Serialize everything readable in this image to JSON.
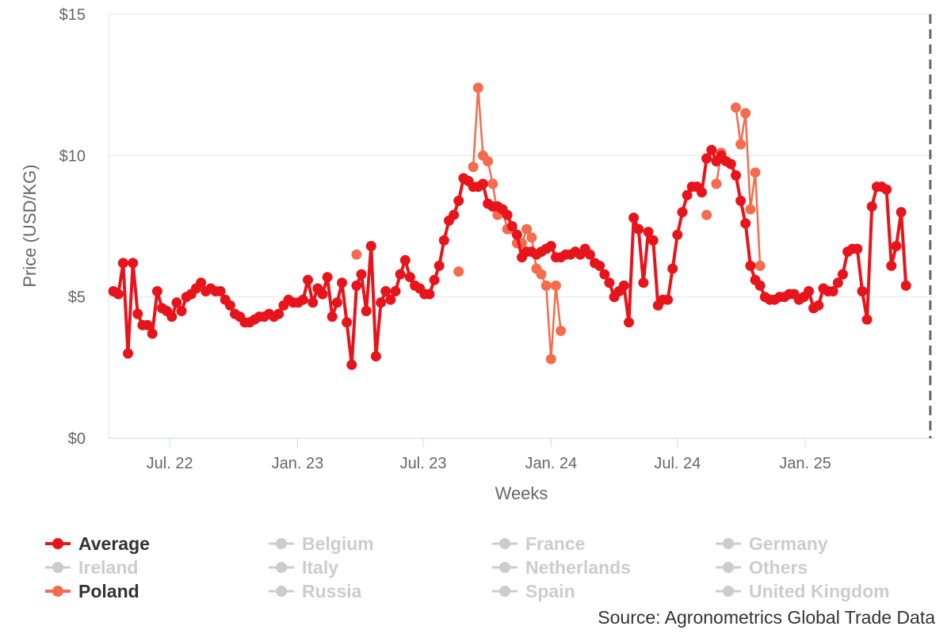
{
  "chart_data": {
    "type": "line",
    "xlabel": "Weeks",
    "ylabel": "Price (USD/KG)",
    "y_ticks": [
      "$0",
      "$5",
      "$10",
      "$15"
    ],
    "x_ticks": [
      "Jul. 22",
      "Jan. 23",
      "Jul. 23",
      "Jan. 24",
      "Jul. 24",
      "Jan. 25"
    ],
    "ylim": [
      0,
      15
    ],
    "xlim": [
      "2022-04-04",
      "2025-07-07"
    ],
    "grid": "horizontal",
    "legend_position": "bottom",
    "current_week_marker": "2025-06-30",
    "series": [
      {
        "name": "Average",
        "color": "#e8141b",
        "points": [
          [
            "2022-04-11",
            5.2
          ],
          [
            "2022-04-18",
            5.1
          ],
          [
            "2022-04-25",
            6.2
          ],
          [
            "2022-05-02",
            3.0
          ],
          [
            "2022-05-09",
            6.2
          ],
          [
            "2022-05-16",
            4.4
          ],
          [
            "2022-05-23",
            4.0
          ],
          [
            "2022-05-30",
            4.0
          ],
          [
            "2022-06-06",
            3.7
          ],
          [
            "2022-06-13",
            5.2
          ],
          [
            "2022-06-20",
            4.6
          ],
          [
            "2022-06-27",
            4.5
          ],
          [
            "2022-07-04",
            4.3
          ],
          [
            "2022-07-11",
            4.8
          ],
          [
            "2022-07-18",
            4.5
          ],
          [
            "2022-07-25",
            5.0
          ],
          [
            "2022-08-01",
            5.1
          ],
          [
            "2022-08-08",
            5.3
          ],
          [
            "2022-08-15",
            5.5
          ],
          [
            "2022-08-22",
            5.2
          ],
          [
            "2022-08-29",
            5.3
          ],
          [
            "2022-09-05",
            5.2
          ],
          [
            "2022-09-12",
            5.2
          ],
          [
            "2022-09-19",
            4.9
          ],
          [
            "2022-09-26",
            4.7
          ],
          [
            "2022-10-03",
            4.4
          ],
          [
            "2022-10-10",
            4.3
          ],
          [
            "2022-10-17",
            4.1
          ],
          [
            "2022-10-24",
            4.1
          ],
          [
            "2022-10-31",
            4.2
          ],
          [
            "2022-11-07",
            4.3
          ],
          [
            "2022-11-14",
            4.3
          ],
          [
            "2022-11-21",
            4.4
          ],
          [
            "2022-11-28",
            4.3
          ],
          [
            "2022-12-05",
            4.4
          ],
          [
            "2022-12-12",
            4.7
          ],
          [
            "2022-12-19",
            4.9
          ],
          [
            "2022-12-26",
            4.8
          ],
          [
            "2023-01-02",
            4.8
          ],
          [
            "2023-01-09",
            4.9
          ],
          [
            "2023-01-16",
            5.6
          ],
          [
            "2023-01-23",
            4.8
          ],
          [
            "2023-01-30",
            5.3
          ],
          [
            "2023-02-06",
            5.1
          ],
          [
            "2023-02-13",
            5.7
          ],
          [
            "2023-02-20",
            4.3
          ],
          [
            "2023-02-27",
            4.8
          ],
          [
            "2023-03-06",
            5.5
          ],
          [
            "2023-03-13",
            4.1
          ],
          [
            "2023-03-20",
            2.6
          ],
          [
            "2023-03-27",
            5.4
          ],
          [
            "2023-04-03",
            5.8
          ],
          [
            "2023-04-10",
            4.5
          ],
          [
            "2023-04-17",
            6.8
          ],
          [
            "2023-04-24",
            2.9
          ],
          [
            "2023-05-01",
            4.8
          ],
          [
            "2023-05-08",
            5.2
          ],
          [
            "2023-05-15",
            4.9
          ],
          [
            "2023-05-22",
            5.2
          ],
          [
            "2023-05-29",
            5.8
          ],
          [
            "2023-06-05",
            6.3
          ],
          [
            "2023-06-12",
            5.7
          ],
          [
            "2023-06-19",
            5.4
          ],
          [
            "2023-06-26",
            5.3
          ],
          [
            "2023-07-03",
            5.1
          ],
          [
            "2023-07-10",
            5.1
          ],
          [
            "2023-07-17",
            5.6
          ],
          [
            "2023-07-24",
            6.1
          ],
          [
            "2023-07-31",
            7.0
          ],
          [
            "2023-08-07",
            7.7
          ],
          [
            "2023-08-14",
            7.9
          ],
          [
            "2023-08-21",
            8.4
          ],
          [
            "2023-08-28",
            9.2
          ],
          [
            "2023-09-04",
            9.1
          ],
          [
            "2023-09-11",
            8.9
          ],
          [
            "2023-09-18",
            8.9
          ],
          [
            "2023-09-25",
            9.0
          ],
          [
            "2023-10-02",
            8.3
          ],
          [
            "2023-10-09",
            8.2
          ],
          [
            "2023-10-16",
            8.2
          ],
          [
            "2023-10-23",
            8.1
          ],
          [
            "2023-10-30",
            7.9
          ],
          [
            "2023-11-06",
            7.5
          ],
          [
            "2023-11-13",
            7.2
          ],
          [
            "2023-11-20",
            6.4
          ],
          [
            "2023-11-27",
            6.6
          ],
          [
            "2023-12-04",
            6.6
          ],
          [
            "2023-12-11",
            6.5
          ],
          [
            "2023-12-18",
            6.6
          ],
          [
            "2023-12-25",
            6.7
          ],
          [
            "2024-01-01",
            6.8
          ],
          [
            "2024-01-08",
            6.4
          ],
          [
            "2024-01-15",
            6.4
          ],
          [
            "2024-01-22",
            6.5
          ],
          [
            "2024-01-29",
            6.5
          ],
          [
            "2024-02-05",
            6.6
          ],
          [
            "2024-02-12",
            6.5
          ],
          [
            "2024-02-19",
            6.7
          ],
          [
            "2024-02-26",
            6.5
          ],
          [
            "2024-03-04",
            6.2
          ],
          [
            "2024-03-11",
            6.1
          ],
          [
            "2024-03-18",
            5.8
          ],
          [
            "2024-03-25",
            5.5
          ],
          [
            "2024-04-01",
            5.0
          ],
          [
            "2024-04-08",
            5.2
          ],
          [
            "2024-04-15",
            5.4
          ],
          [
            "2024-04-22",
            4.1
          ],
          [
            "2024-04-29",
            7.8
          ],
          [
            "2024-05-06",
            7.4
          ],
          [
            "2024-05-13",
            5.5
          ],
          [
            "2024-05-20",
            7.3
          ],
          [
            "2024-05-27",
            7.0
          ],
          [
            "2024-06-03",
            4.7
          ],
          [
            "2024-06-10",
            4.9
          ],
          [
            "2024-06-17",
            4.9
          ],
          [
            "2024-06-24",
            6.0
          ],
          [
            "2024-07-01",
            7.2
          ],
          [
            "2024-07-08",
            8.0
          ],
          [
            "2024-07-15",
            8.6
          ],
          [
            "2024-07-22",
            8.9
          ],
          [
            "2024-07-29",
            8.9
          ],
          [
            "2024-08-05",
            8.7
          ],
          [
            "2024-08-12",
            9.9
          ],
          [
            "2024-08-19",
            10.2
          ],
          [
            "2024-08-26",
            9.8
          ],
          [
            "2024-09-02",
            10.0
          ],
          [
            "2024-09-09",
            9.8
          ],
          [
            "2024-09-16",
            9.7
          ],
          [
            "2024-09-23",
            9.3
          ],
          [
            "2024-09-30",
            8.4
          ],
          [
            "2024-10-07",
            7.6
          ],
          [
            "2024-10-14",
            6.1
          ],
          [
            "2024-10-21",
            5.6
          ],
          [
            "2024-10-28",
            5.4
          ],
          [
            "2024-11-04",
            5.0
          ],
          [
            "2024-11-11",
            4.9
          ],
          [
            "2024-11-18",
            4.9
          ],
          [
            "2024-11-25",
            5.0
          ],
          [
            "2024-12-02",
            5.0
          ],
          [
            "2024-12-09",
            5.1
          ],
          [
            "2024-12-16",
            5.1
          ],
          [
            "2024-12-23",
            4.9
          ],
          [
            "2024-12-30",
            5.0
          ],
          [
            "2025-01-06",
            5.2
          ],
          [
            "2025-01-13",
            4.6
          ],
          [
            "2025-01-20",
            4.7
          ],
          [
            "2025-01-27",
            5.3
          ],
          [
            "2025-02-03",
            5.2
          ],
          [
            "2025-02-10",
            5.2
          ],
          [
            "2025-02-17",
            5.5
          ],
          [
            "2025-02-24",
            5.8
          ],
          [
            "2025-03-03",
            6.6
          ],
          [
            "2025-03-10",
            6.7
          ],
          [
            "2025-03-17",
            6.7
          ],
          [
            "2025-03-24",
            5.2
          ],
          [
            "2025-03-31",
            4.2
          ],
          [
            "2025-04-07",
            8.2
          ],
          [
            "2025-04-14",
            8.9
          ],
          [
            "2025-04-21",
            8.9
          ],
          [
            "2025-04-28",
            8.8
          ],
          [
            "2025-05-05",
            6.1
          ],
          [
            "2025-05-12",
            6.8
          ],
          [
            "2025-05-19",
            8.0
          ],
          [
            "2025-05-26",
            5.4
          ]
        ]
      },
      {
        "name": "Poland",
        "color": "#f56b4d",
        "points": [
          [
            "2023-03-27",
            6.5
          ],
          null,
          [
            "2023-08-21",
            5.9
          ],
          null,
          [
            "2023-09-11",
            9.6
          ],
          [
            "2023-09-18",
            12.4
          ],
          [
            "2023-09-25",
            10.0
          ],
          [
            "2023-10-02",
            9.8
          ],
          [
            "2023-10-09",
            9.0
          ],
          [
            "2023-10-16",
            7.9
          ],
          [
            "2023-10-23",
            8.1
          ],
          [
            "2023-10-30",
            7.4
          ],
          [
            "2023-11-06",
            7.4
          ],
          [
            "2023-11-13",
            6.9
          ],
          [
            "2023-11-20",
            6.9
          ],
          [
            "2023-11-27",
            7.4
          ],
          [
            "2023-12-04",
            7.1
          ],
          [
            "2023-12-11",
            6.0
          ],
          [
            "2023-12-18",
            5.8
          ],
          [
            "2023-12-25",
            5.4
          ],
          [
            "2024-01-01",
            2.8
          ],
          [
            "2024-01-08",
            5.4
          ],
          [
            "2024-01-15",
            3.8
          ],
          null,
          [
            "2024-08-12",
            7.9
          ],
          null,
          [
            "2024-08-26",
            9.0
          ],
          [
            "2024-09-02",
            10.1
          ],
          null,
          [
            "2024-09-23",
            11.7
          ],
          [
            "2024-09-30",
            10.4
          ],
          [
            "2024-10-07",
            11.5
          ],
          [
            "2024-10-14",
            8.1
          ],
          [
            "2024-10-21",
            9.4
          ],
          [
            "2024-10-28",
            6.1
          ]
        ]
      }
    ]
  },
  "legend": [
    {
      "label": "Average",
      "color": "#e8141b",
      "active": true
    },
    {
      "label": "Belgium",
      "color": "#cccccc",
      "active": false
    },
    {
      "label": "France",
      "color": "#cccccc",
      "active": false
    },
    {
      "label": "Germany",
      "color": "#cccccc",
      "active": false
    },
    {
      "label": "Ireland",
      "color": "#cccccc",
      "active": false
    },
    {
      "label": "Italy",
      "color": "#cccccc",
      "active": false
    },
    {
      "label": "Netherlands",
      "color": "#cccccc",
      "active": false
    },
    {
      "label": "Others",
      "color": "#cccccc",
      "active": false
    },
    {
      "label": "Poland",
      "color": "#f56b4d",
      "active": true
    },
    {
      "label": "Russia",
      "color": "#cccccc",
      "active": false
    },
    {
      "label": "Spain",
      "color": "#cccccc",
      "active": false
    },
    {
      "label": "United Kingdom",
      "color": "#cccccc",
      "active": false
    }
  ],
  "source": "Source: Agronometrics Global Trade Data"
}
